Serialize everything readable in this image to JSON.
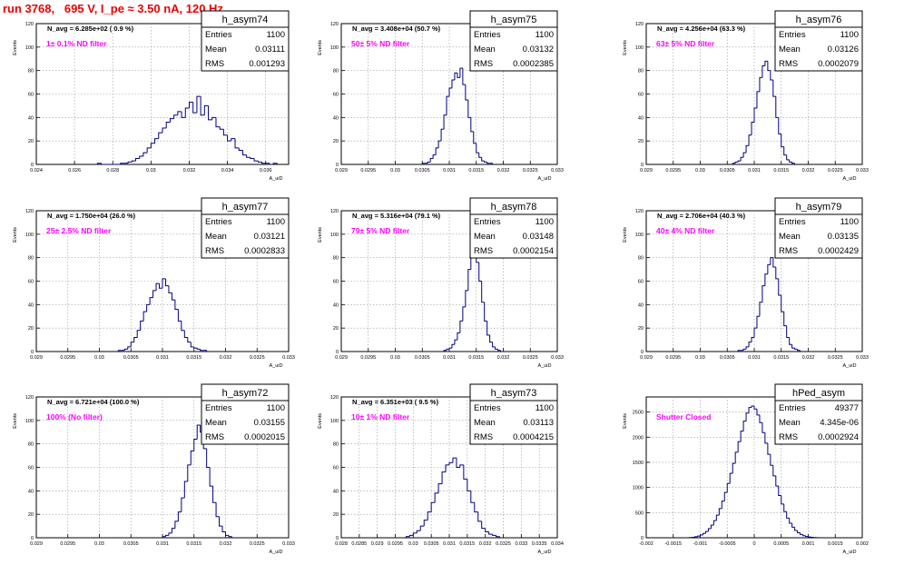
{
  "page_title": "run 3768,   695 V, I_pe ≈ 3.50 nA, 120 Hz",
  "colors": {
    "histogram_line": "#000080",
    "title_text": "#ee0000",
    "filter_label_text": "#ff00ff",
    "grid": "#9a9a9a",
    "axes": "#000000"
  },
  "chart_data": [
    {
      "type": "bar",
      "histogram_name": "h_asym74",
      "stats": {
        "entries_label": "Entries",
        "entries": "1100",
        "mean_label": "Mean",
        "mean": "0.03111",
        "rms_label": "RMS",
        "rms": "0.001293"
      },
      "n_avg_text": "N_avg = 6.285e+02 ( 0.9 %)",
      "filter_text": "1± 0.1% ND filter",
      "ylabel": "Events",
      "xlabel": "A_uiD",
      "xlim": [
        0.024,
        0.0372
      ],
      "ylim": [
        0,
        120
      ],
      "xticks": [
        0.024,
        0.026,
        0.028,
        0.03,
        0.032,
        0.034,
        0.036
      ],
      "xtick_labels": [
        "0.024",
        "0.026",
        "0.028",
        "0.03",
        "0.032",
        "0.034",
        "0.036"
      ],
      "yticks": [
        0,
        20,
        40,
        60,
        80,
        100,
        120
      ],
      "ytick_labels": [
        "0",
        "20",
        "40",
        "60",
        "80",
        "100",
        "120"
      ],
      "bin_width": 0.0002,
      "x_start": 0.0272,
      "counts": [
        1,
        0,
        0,
        0,
        0,
        0,
        1,
        1,
        2,
        3,
        5,
        7,
        10,
        14,
        18,
        22,
        27,
        31,
        36,
        39,
        42,
        45,
        40,
        48,
        53,
        44,
        58,
        42,
        50,
        38,
        40,
        32,
        30,
        25,
        20,
        22,
        14,
        12,
        8,
        6,
        5,
        3,
        2,
        1,
        1,
        0,
        1
      ]
    },
    {
      "type": "bar",
      "histogram_name": "h_asym75",
      "stats": {
        "entries_label": "Entries",
        "entries": "1100",
        "mean_label": "Mean",
        "mean": "0.03132",
        "rms_label": "RMS",
        "rms": "0.0002385"
      },
      "n_avg_text": "N_avg = 3.408e+04 (50.7 %)",
      "filter_text": "50± 5% ND filter",
      "ylabel": "Events",
      "xlabel": "A_uiD",
      "xlim": [
        0.029,
        0.033
      ],
      "ylim": [
        0,
        120
      ],
      "xticks": [
        0.029,
        0.0295,
        0.03,
        0.0305,
        0.031,
        0.0315,
        0.032,
        0.0325,
        0.033
      ],
      "xtick_labels": [
        "0.029",
        "0.0295",
        "0.03",
        "0.0305",
        "0.031",
        "0.0315",
        "0.032",
        "0.0325",
        "0.033"
      ],
      "yticks": [
        0,
        20,
        40,
        60,
        80,
        100,
        120
      ],
      "ytick_labels": [
        "0",
        "20",
        "40",
        "60",
        "80",
        "100",
        "120"
      ],
      "bin_width": 5e-05,
      "x_start": 0.0305,
      "counts": [
        1,
        1,
        2,
        5,
        8,
        14,
        20,
        30,
        42,
        58,
        65,
        72,
        78,
        74,
        82,
        68,
        55,
        40,
        28,
        18,
        10,
        6,
        3,
        2,
        1,
        1
      ]
    },
    {
      "type": "bar",
      "histogram_name": "h_asym76",
      "stats": {
        "entries_label": "Entries",
        "entries": "1100",
        "mean_label": "Mean",
        "mean": "0.03126",
        "rms_label": "RMS",
        "rms": "0.0002079"
      },
      "n_avg_text": "N_avg = 4.256e+04 (63.3 %)",
      "filter_text": "63± 5% ND filter",
      "ylabel": "Events",
      "xlabel": "A_uiD",
      "xlim": [
        0.029,
        0.033
      ],
      "ylim": [
        0,
        120
      ],
      "xticks": [
        0.029,
        0.0295,
        0.03,
        0.0305,
        0.031,
        0.0315,
        0.032,
        0.0325,
        0.033
      ],
      "xtick_labels": [
        "0.029",
        "0.0295",
        "0.03",
        "0.0305",
        "0.031",
        "0.0315",
        "0.032",
        "0.0325",
        "0.033"
      ],
      "yticks": [
        0,
        20,
        40,
        60,
        80,
        100,
        120
      ],
      "ytick_labels": [
        "0",
        "20",
        "40",
        "60",
        "80",
        "100",
        "120"
      ],
      "bin_width": 5e-05,
      "x_start": 0.0306,
      "counts": [
        1,
        2,
        3,
        6,
        10,
        16,
        25,
        36,
        48,
        62,
        74,
        84,
        88,
        80,
        72,
        58,
        40,
        26,
        15,
        8,
        4,
        2,
        1
      ]
    },
    {
      "type": "bar",
      "histogram_name": "h_asym77",
      "stats": {
        "entries_label": "Entries",
        "entries": "1100",
        "mean_label": "Mean",
        "mean": "0.03121",
        "rms_label": "RMS",
        "rms": "0.0002833"
      },
      "n_avg_text": "N_avg = 1.750e+04 (26.0 %)",
      "filter_text": "25± 2.5% ND filter",
      "ylabel": "Events",
      "xlabel": "A_uiD",
      "xlim": [
        0.029,
        0.033
      ],
      "ylim": [
        0,
        120
      ],
      "xticks": [
        0.029,
        0.0295,
        0.03,
        0.0305,
        0.031,
        0.0315,
        0.032,
        0.0325,
        0.033
      ],
      "xtick_labels": [
        "0.029",
        "0.0295",
        "0.03",
        "0.0305",
        "0.031",
        "0.0315",
        "0.032",
        "0.0325",
        "0.033"
      ],
      "yticks": [
        0,
        20,
        40,
        60,
        80,
        100,
        120
      ],
      "ytick_labels": [
        "0",
        "20",
        "40",
        "60",
        "80",
        "100",
        "120"
      ],
      "bin_width": 5e-05,
      "x_start": 0.0303,
      "counts": [
        1,
        1,
        2,
        4,
        8,
        12,
        18,
        26,
        34,
        40,
        46,
        52,
        58,
        54,
        62,
        56,
        50,
        44,
        36,
        26,
        18,
        12,
        8,
        4,
        3,
        2,
        1,
        1
      ]
    },
    {
      "type": "bar",
      "histogram_name": "h_asym78",
      "stats": {
        "entries_label": "Entries",
        "entries": "1100",
        "mean_label": "Mean",
        "mean": "0.03148",
        "rms_label": "RMS",
        "rms": "0.0002154"
      },
      "n_avg_text": "N_avg = 5.316e+04 (79.1 %)",
      "filter_text": "79± 5% ND filter",
      "ylabel": "Events",
      "xlabel": "A_uiD",
      "xlim": [
        0.029,
        0.033
      ],
      "ylim": [
        0,
        120
      ],
      "xticks": [
        0.029,
        0.0295,
        0.03,
        0.0305,
        0.031,
        0.0315,
        0.032,
        0.0325,
        0.033
      ],
      "xtick_labels": [
        "0.029",
        "0.0295",
        "0.03",
        "0.0305",
        "0.031",
        "0.0315",
        "0.032",
        "0.0325",
        "0.033"
      ],
      "yticks": [
        0,
        20,
        40,
        60,
        80,
        100,
        120
      ],
      "ytick_labels": [
        "0",
        "20",
        "40",
        "60",
        "80",
        "100",
        "120"
      ],
      "bin_width": 5e-05,
      "x_start": 0.0309,
      "counts": [
        1,
        2,
        3,
        6,
        10,
        16,
        26,
        38,
        52,
        70,
        82,
        88,
        76,
        60,
        42,
        26,
        14,
        8,
        4,
        2,
        1
      ]
    },
    {
      "type": "bar",
      "histogram_name": "h_asym79",
      "stats": {
        "entries_label": "Entries",
        "entries": "1100",
        "mean_label": "Mean",
        "mean": "0.03135",
        "rms_label": "RMS",
        "rms": "0.0002429"
      },
      "n_avg_text": "N_avg = 2.706e+04 (40.3 %)",
      "filter_text": "40± 4% ND filter",
      "ylabel": "Events",
      "xlabel": "A_uiD",
      "xlim": [
        0.029,
        0.033
      ],
      "ylim": [
        0,
        120
      ],
      "xticks": [
        0.029,
        0.0295,
        0.03,
        0.0305,
        0.031,
        0.0315,
        0.032,
        0.0325,
        0.033
      ],
      "xtick_labels": [
        "0.029",
        "0.0295",
        "0.03",
        "0.0305",
        "0.031",
        "0.0315",
        "0.032",
        "0.0325",
        "0.033"
      ],
      "yticks": [
        0,
        20,
        40,
        60,
        80,
        100,
        120
      ],
      "ytick_labels": [
        "0",
        "20",
        "40",
        "60",
        "80",
        "100",
        "120"
      ],
      "bin_width": 5e-05,
      "x_start": 0.0307,
      "counts": [
        1,
        1,
        2,
        4,
        8,
        12,
        20,
        30,
        42,
        56,
        66,
        74,
        80,
        72,
        62,
        48,
        34,
        22,
        12,
        6,
        3,
        2,
        1
      ]
    },
    {
      "type": "bar",
      "histogram_name": "h_asym72",
      "stats": {
        "entries_label": "Entries",
        "entries": "1100",
        "mean_label": "Mean",
        "mean": "0.03155",
        "rms_label": "RMS",
        "rms": "0.0002015"
      },
      "n_avg_text": "N_avg = 6.721e+04 (100.0 %)",
      "filter_text": "100% (No filter)",
      "ylabel": "Events",
      "xlabel": "A_uiD",
      "xlim": [
        0.029,
        0.033
      ],
      "ylim": [
        0,
        120
      ],
      "xticks": [
        0.029,
        0.0295,
        0.03,
        0.0305,
        0.031,
        0.0315,
        0.032,
        0.0325,
        0.033
      ],
      "xtick_labels": [
        "0.029",
        "0.0295",
        "0.03",
        "0.0305",
        "0.031",
        "0.0315",
        "0.032",
        "0.0325",
        "0.033"
      ],
      "yticks": [
        0,
        20,
        40,
        60,
        80,
        100,
        120
      ],
      "ytick_labels": [
        "0",
        "20",
        "40",
        "60",
        "80",
        "100",
        "120"
      ],
      "bin_width": 5e-05,
      "x_start": 0.031,
      "counts": [
        1,
        2,
        4,
        8,
        14,
        22,
        34,
        48,
        62,
        74,
        84,
        96,
        90,
        76,
        60,
        44,
        30,
        18,
        10,
        5,
        2,
        1
      ]
    },
    {
      "type": "bar",
      "histogram_name": "h_asym73",
      "stats": {
        "entries_label": "Entries",
        "entries": "1100",
        "mean_label": "Mean",
        "mean": "0.03113",
        "rms_label": "RMS",
        "rms": "0.0004215"
      },
      "n_avg_text": "N_avg = 6.351e+03 ( 9.5 %)",
      "filter_text": "10± 1% ND filter",
      "ylabel": "Events",
      "xlabel": "A_uiD",
      "xlim": [
        0.028,
        0.034
      ],
      "ylim": [
        0,
        120
      ],
      "xticks": [
        0.028,
        0.0285,
        0.029,
        0.0295,
        0.03,
        0.0305,
        0.031,
        0.0315,
        0.032,
        0.0325,
        0.033,
        0.0335,
        0.034
      ],
      "xtick_labels": [
        "0.028",
        "0.0285",
        "0.029",
        "0.0295",
        "0.03",
        "0.0305",
        "0.031",
        "0.0315",
        "0.032",
        "0.0325",
        "0.033",
        "0.0335",
        "0.034"
      ],
      "yticks": [
        0,
        20,
        40,
        60,
        80,
        100,
        120
      ],
      "ytick_labels": [
        "0",
        "20",
        "40",
        "60",
        "80",
        "100",
        "120"
      ],
      "bin_width": 0.0001,
      "x_start": 0.0298,
      "counts": [
        1,
        2,
        4,
        6,
        10,
        15,
        22,
        30,
        38,
        46,
        56,
        62,
        64,
        68,
        60,
        62,
        50,
        40,
        30,
        22,
        14,
        8,
        5,
        3,
        2,
        1
      ]
    },
    {
      "type": "bar",
      "histogram_name": "hPed_asym",
      "stats": {
        "entries_label": "Entries",
        "entries": "49377",
        "mean_label": "Mean",
        "mean": "4.345e-06",
        "rms_label": "RMS",
        "rms": "0.0002924"
      },
      "n_avg_text": "",
      "filter_text": "Shutter Closed",
      "ylabel": "Events",
      "xlabel": "A_uiD",
      "xlim": [
        -0.002,
        0.002
      ],
      "ylim": [
        0,
        2800
      ],
      "xticks": [
        -0.002,
        -0.0015,
        -0.001,
        -0.0005,
        0,
        0.0005,
        0.001,
        0.0015,
        0.002
      ],
      "xtick_labels": [
        "-0.002",
        "-0.0015",
        "-0.001",
        "-0.0005",
        "0",
        "0.0005",
        "0.001",
        "0.0015",
        "0.002"
      ],
      "yticks": [
        0,
        500,
        1000,
        1500,
        2000,
        2500
      ],
      "ytick_labels": [
        "0",
        "500",
        "1000",
        "1500",
        "2000",
        "2500"
      ],
      "bin_width": 5e-05,
      "x_start": -0.0012,
      "counts": [
        5,
        10,
        20,
        35,
        55,
        85,
        125,
        180,
        250,
        340,
        450,
        580,
        730,
        900,
        1080,
        1280,
        1480,
        1700,
        1910,
        2120,
        2320,
        2480,
        2590,
        2620,
        2560,
        2440,
        2290,
        2090,
        1880,
        1660,
        1440,
        1230,
        1030,
        840,
        670,
        520,
        390,
        290,
        210,
        145,
        100,
        65,
        40,
        25,
        15,
        8,
        4,
        2
      ]
    }
  ]
}
